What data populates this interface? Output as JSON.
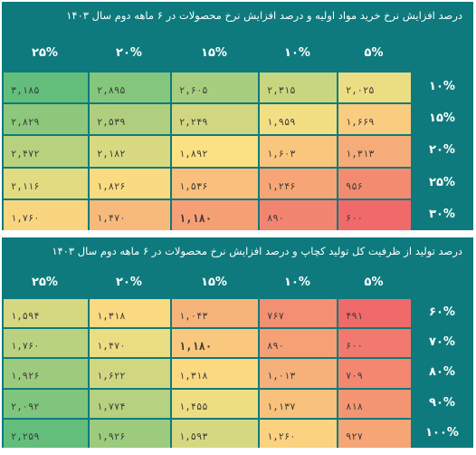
{
  "chart_data": [
    {
      "type": "heatmap",
      "title": "درصد افزایش نرخ خرید مواد اولیه و درصد افزایش نرخ محصولات در ۶ ماهه دوم سال ۱۴۰۳",
      "columns": [
        "۲۵%",
        "۲۰%",
        "۱۵%",
        "۱۰%",
        "۵%"
      ],
      "rows": [
        "۱۰%",
        "۱۵%",
        "۲۰%",
        "۲۵%",
        "۳۰%"
      ],
      "values": [
        [
          "۳,۱۸۵",
          "۲,۸۹۵",
          "۲,۶۰۵",
          "۲,۳۱۵",
          "۲,۰۲۵"
        ],
        [
          "۲,۸۲۹",
          "۲,۵۳۹",
          "۲,۲۴۹",
          "۱,۹۵۹",
          "۱,۶۶۹"
        ],
        [
          "۲,۴۷۲",
          "۲,۱۸۲",
          "۱,۸۹۲",
          "۱,۶۰۳",
          "۱,۳۱۳"
        ],
        [
          "۲,۱۱۶",
          "۱,۸۲۶",
          "۱,۵۳۶",
          "۱,۲۴۶",
          "۹۵۶"
        ],
        [
          "۱,۷۶۰",
          "۱,۴۷۰",
          "۱,۱۸۰",
          "۸۹۰",
          "۶۰۰"
        ]
      ],
      "numeric_values": [
        [
          3185,
          2895,
          2605,
          2315,
          2025
        ],
        [
          2829,
          2539,
          2249,
          1959,
          1669
        ],
        [
          2472,
          2182,
          1892,
          1603,
          1313
        ],
        [
          2116,
          1826,
          1536,
          1246,
          956
        ],
        [
          1760,
          1470,
          1180,
          890,
          600
        ]
      ],
      "highlight": [
        4,
        2
      ]
    },
    {
      "type": "heatmap",
      "title": "درصد تولید از ظرفیت کل تولید کچاپ و درصد افزایش نرخ محصولات در ۶ ماهه دوم سال ۱۴۰۳",
      "columns": [
        "۲۵%",
        "۲۰%",
        "۱۵%",
        "۱۰%",
        "۵%"
      ],
      "rows": [
        "۶۰%",
        "۷۰%",
        "۸۰%",
        "۹۰%",
        "۱۰۰%"
      ],
      "values": [
        [
          "۱,۵۹۴",
          "۱,۳۱۸",
          "۱,۰۴۳",
          "۷۶۷",
          "۴۹۱"
        ],
        [
          "۱,۷۶۰",
          "۱,۴۷۰",
          "۱,۱۸۰",
          "۸۹۰",
          "۶۰۰"
        ],
        [
          "۱,۹۲۶",
          "۱,۶۲۲",
          "۱,۳۱۸",
          "۱,۰۱۳",
          "۷۰۹"
        ],
        [
          "۲,۰۹۲",
          "۱,۷۷۴",
          "۱,۴۵۵",
          "۱,۱۳۷",
          "۸۱۸"
        ],
        [
          "۲,۲۵۹",
          "۱,۹۲۶",
          "۱,۵۹۳",
          "۱,۲۶۰",
          "۹۲۷"
        ]
      ],
      "numeric_values": [
        [
          1594,
          1318,
          1043,
          767,
          491
        ],
        [
          1760,
          1470,
          1180,
          890,
          600
        ],
        [
          1926,
          1622,
          1318,
          1013,
          709
        ],
        [
          2092,
          1774,
          1455,
          1137,
          818
        ],
        [
          2259,
          1926,
          1593,
          1260,
          927
        ]
      ],
      "highlight": [
        1,
        2
      ]
    }
  ],
  "colors": {
    "header_bg": "#0e7a7d",
    "low": "#f06a6a",
    "mid": "#fbe183",
    "high": "#63be7b"
  }
}
